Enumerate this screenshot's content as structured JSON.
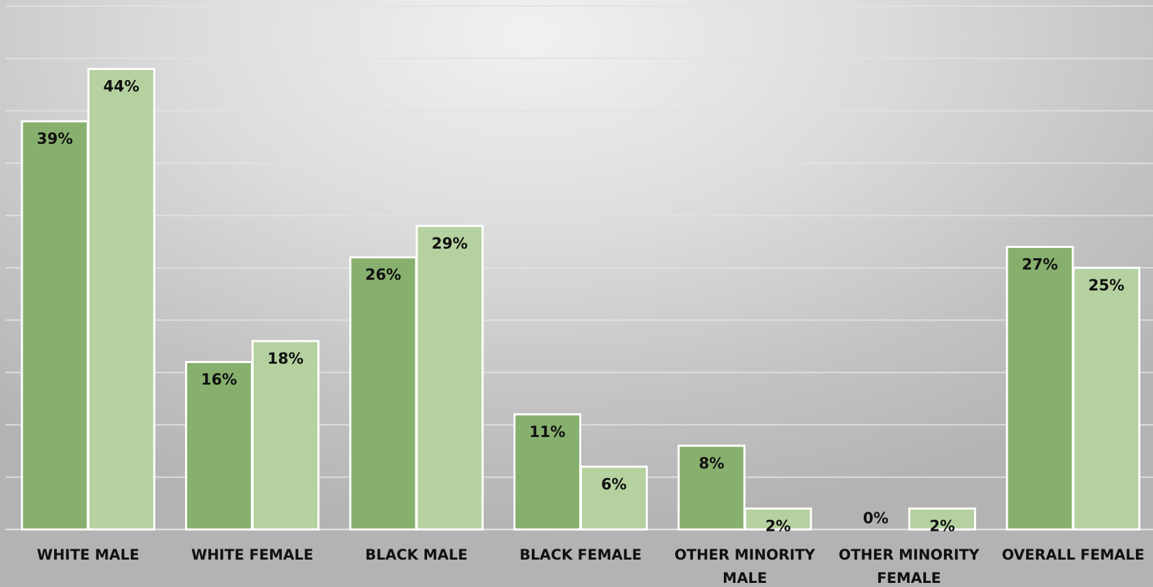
{
  "chart_data": {
    "type": "bar",
    "title": "",
    "xlabel": "",
    "ylabel": "",
    "ylim": [
      0,
      45
    ],
    "grid": true,
    "legend": "none",
    "categories": [
      "WHITE MALE",
      "WHITE FEMALE",
      "BLACK MALE",
      "BLACK FEMALE",
      "OTHER MINORITY MALE",
      "OTHER MINORITY FEMALE",
      "OVERALL FEMALE"
    ],
    "series": [
      {
        "values": [
          39,
          16,
          26,
          11,
          8,
          0,
          27
        ],
        "labels": [
          "39%",
          "16%",
          "26%",
          "11%",
          "8%",
          "0%",
          "27%"
        ],
        "color": "#87b06e"
      },
      {
        "values": [
          44,
          18,
          29,
          6,
          2,
          2,
          25
        ],
        "labels": [
          "44%",
          "18%",
          "29%",
          "6%",
          "2%",
          "2%",
          "25%"
        ],
        "color": "#b4d19f"
      }
    ],
    "category_label_lines": [
      [
        "WHITE MALE"
      ],
      [
        "WHITE FEMALE"
      ],
      [
        "BLACK MALE"
      ],
      [
        "BLACK FEMALE"
      ],
      [
        "OTHER MINORITY",
        "MALE"
      ],
      [
        "OTHER MINORITY",
        "FEMALE"
      ],
      [
        "OVERALL FEMALE"
      ]
    ]
  }
}
